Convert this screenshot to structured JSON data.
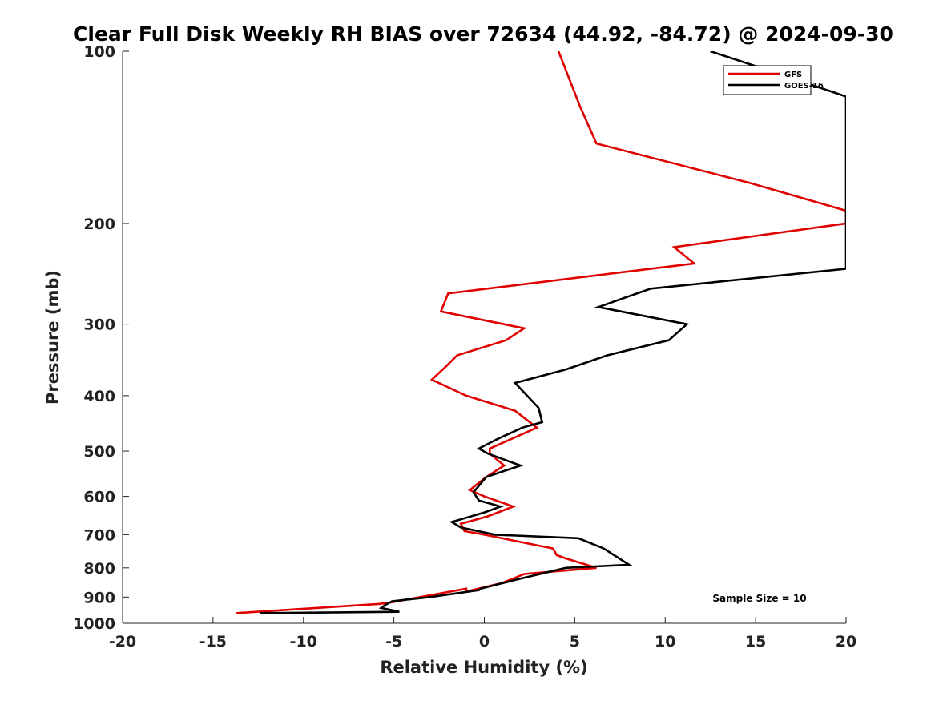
{
  "chart_data": {
    "type": "line",
    "title": "Clear Full Disk Weekly RH BIAS over 72634 (44.92, -84.72) @ 2024-09-30",
    "xlabel": "Relative Humidity (%)",
    "ylabel": "Pressure (mb)",
    "xlim": [
      -20,
      20
    ],
    "ylim": [
      100,
      1000
    ],
    "yscale": "log",
    "xticks": [
      -20,
      -15,
      -10,
      -5,
      0,
      5,
      10,
      15,
      20
    ],
    "xtick_labels": [
      "-20",
      "-15",
      "-10",
      "-5",
      "0",
      "5",
      "10",
      "15",
      "20"
    ],
    "yticks": [
      100,
      200,
      300,
      400,
      500,
      600,
      700,
      800,
      900,
      1000
    ],
    "ytick_labels": [
      "100",
      "200",
      "300",
      "400",
      "500",
      "600",
      "700",
      "800",
      "900",
      "1000"
    ],
    "legend_position": "top-right",
    "annotation": "Sample Size = 10",
    "series": [
      {
        "name": "GFS",
        "color": "#e00000",
        "x": [
          4.1,
          5.3,
          6.2,
          14.7,
          20.0,
          20.0,
          10.5,
          11.6,
          -2.0,
          -2.4,
          2.2,
          1.2,
          -1.5,
          -2.1,
          -2.9,
          -1.0,
          1.7,
          2.9,
          0.3,
          0.3,
          1.1,
          0.1,
          -0.8,
          0.0,
          1.6,
          0.2,
          -1.3,
          -1.1,
          0.0,
          3.8,
          4.0,
          4.5,
          6.2,
          2.2,
          1.0,
          -1.0,
          -1.0,
          -5.2,
          -5.8,
          -13.7
        ],
        "y": [
          100,
          125,
          145,
          170,
          190,
          200,
          220,
          235,
          265,
          285,
          305,
          320,
          340,
          355,
          375,
          400,
          425,
          455,
          495,
          505,
          530,
          555,
          585,
          600,
          625,
          650,
          670,
          690,
          700,
          740,
          760,
          770,
          800,
          820,
          850,
          880,
          870,
          920,
          925,
          960
        ]
      },
      {
        "name": "GOES-16",
        "color": "#000000",
        "x": [
          12.5,
          16.5,
          20.0,
          20.0,
          9.2,
          6.3,
          11.2,
          10.2,
          6.8,
          4.5,
          1.7,
          3.0,
          3.2,
          2.1,
          0.8,
          -0.3,
          0.2,
          2.0,
          0.1,
          -0.6,
          -0.3,
          0.9,
          0.0,
          -1.8,
          -1.3,
          0.6,
          5.2,
          6.6,
          8.0,
          4.5,
          1.7,
          -0.2,
          -0.3,
          -3.0,
          -5.1,
          -5.5,
          -5.7,
          -4.7,
          -12.4
        ],
        "y": [
          100,
          110,
          120,
          240,
          260,
          280,
          300,
          320,
          340,
          360,
          380,
          420,
          445,
          455,
          475,
          495,
          505,
          530,
          555,
          590,
          610,
          625,
          640,
          665,
          680,
          700,
          710,
          740,
          790,
          800,
          840,
          870,
          875,
          900,
          915,
          930,
          940,
          955,
          960
        ]
      }
    ]
  }
}
